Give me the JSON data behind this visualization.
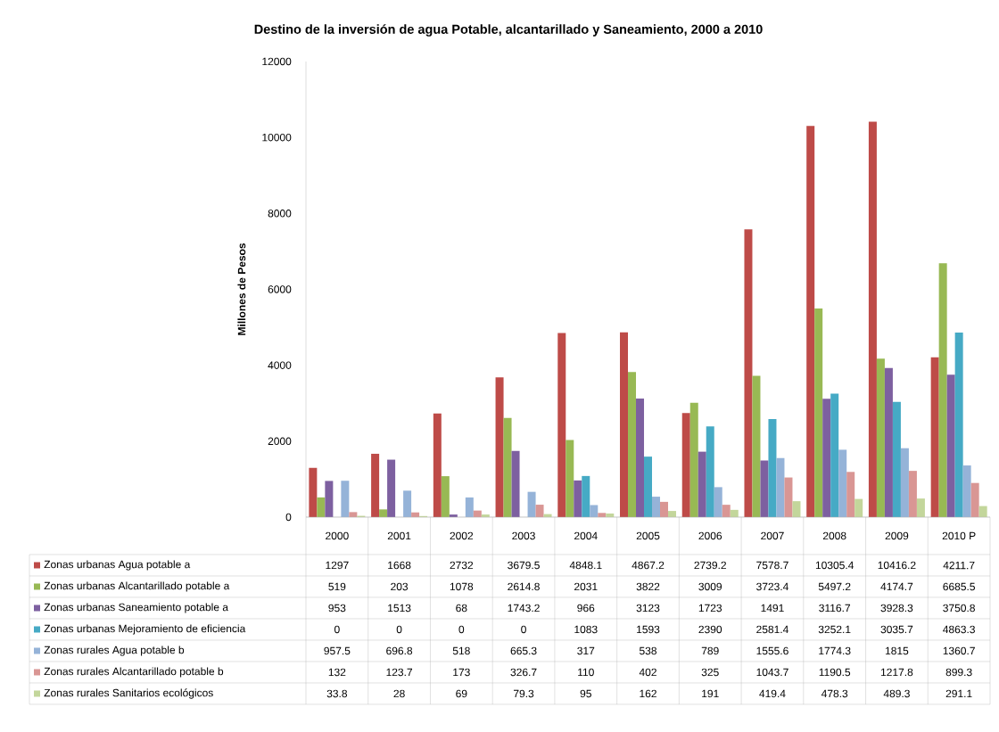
{
  "chart_data": {
    "type": "bar",
    "title": "Destino de la inversión de agua Potable, alcantarillado y Saneamiento, 2000 a 2010",
    "ylabel": "Millones de Pesos",
    "categories": [
      "2000",
      "2001",
      "2002",
      "2003",
      "2004",
      "2005",
      "2006",
      "2007",
      "2008",
      "2009",
      "2010 P"
    ],
    "series": [
      {
        "name": "Zonas urbanas Agua potable a",
        "color": "#be4b48",
        "values": [
          1297,
          1668,
          2732,
          3679.5,
          4848.1,
          4867.2,
          2739.2,
          7578.7,
          10305.4,
          10416.2,
          4211.7
        ]
      },
      {
        "name": "Zonas urbanas Alcantarillado potable a",
        "color": "#98b954",
        "values": [
          519,
          203,
          1078,
          2614.8,
          2031,
          3822,
          3009,
          3723.4,
          5497.2,
          4174.7,
          6685.5
        ]
      },
      {
        "name": "Zonas urbanas Saneamiento potable a",
        "color": "#7d60a0",
        "values": [
          953,
          1513,
          68,
          1743.2,
          966,
          3123,
          1723,
          1491,
          3116.7,
          3928.3,
          3750.8
        ]
      },
      {
        "name": "Zonas urbanas Mejoramiento de eficiencia",
        "color": "#46aac5",
        "values": [
          0,
          0,
          0,
          0,
          1083,
          1593,
          2390,
          2581.4,
          3252.1,
          3035.7,
          4863.3
        ]
      },
      {
        "name": "Zonas rurales Agua potable b",
        "color": "#95b3d8",
        "values": [
          957.5,
          696.8,
          518,
          665.3,
          317,
          538,
          789,
          1555.6,
          1774.3,
          1815,
          1360.7
        ]
      },
      {
        "name": "Zonas rurales Alcantarillado potable b",
        "color": "#d99694",
        "values": [
          132,
          123.7,
          173,
          326.7,
          110,
          402,
          325,
          1043.7,
          1190.5,
          1217.8,
          899.3
        ]
      },
      {
        "name": "Zonas rurales Sanitarios ecológicos",
        "color": "#c3d69b",
        "values": [
          33.8,
          28,
          69,
          79.3,
          95,
          162,
          191,
          419.4,
          478.3,
          489.3,
          291.1
        ]
      }
    ],
    "ylim": [
      0,
      12000
    ],
    "yticks": [
      0,
      2000,
      4000,
      6000,
      8000,
      10000,
      12000
    ],
    "data_labels": true,
    "legend": "bottom",
    "grid": false
  }
}
